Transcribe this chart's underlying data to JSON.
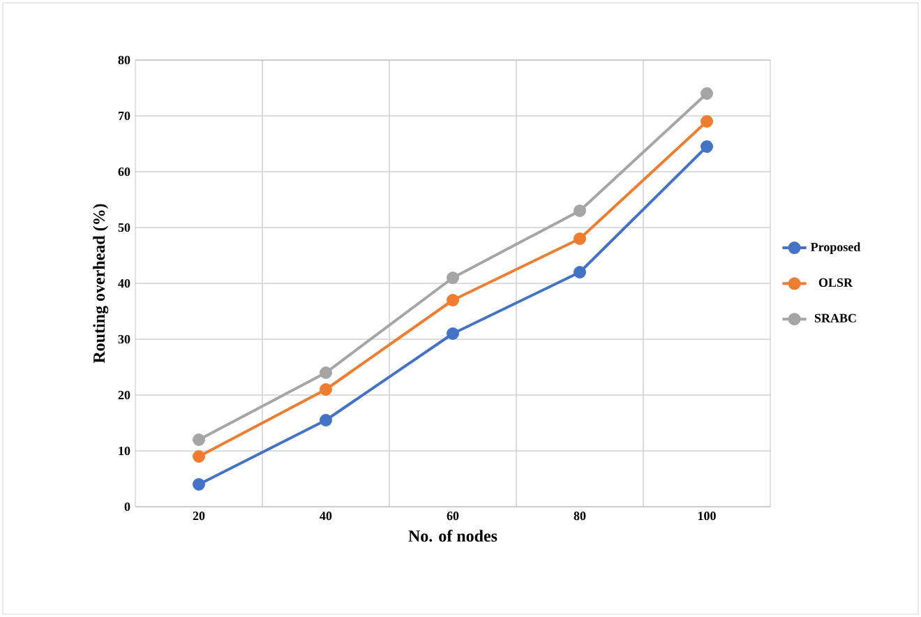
{
  "chart_data": {
    "type": "line",
    "xlabel": "No. of nodes",
    "ylabel": "Routing overhead (%)",
    "categories": [
      "20",
      "40",
      "60",
      "80",
      "100"
    ],
    "series": [
      {
        "name": "Proposed",
        "color": "#4472c4",
        "values": [
          4,
          15.5,
          31,
          42,
          64.5
        ]
      },
      {
        "name": "OLSR",
        "color": "#ed7d31",
        "values": [
          9,
          21,
          37,
          48,
          69
        ]
      },
      {
        "name": "SRABC",
        "color": "#a5a5a5",
        "values": [
          12,
          24,
          41,
          53,
          74
        ]
      }
    ],
    "ylim": [
      0,
      80
    ],
    "yticks": [
      0,
      10,
      20,
      30,
      40,
      50,
      60,
      70,
      80
    ],
    "grid": true,
    "legend": "right",
    "marker": "circle",
    "line_style": "solid"
  }
}
